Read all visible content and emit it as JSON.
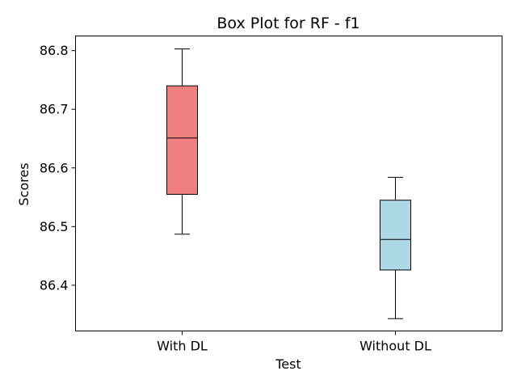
{
  "chart_data": {
    "type": "box",
    "title": "Box Plot for RF - f1",
    "xlabel": "Test",
    "ylabel": "Scores",
    "ylim": [
      86.322,
      86.825
    ],
    "yticks": [
      86.4,
      86.5,
      86.6,
      86.7,
      86.8
    ],
    "ytick_labels": [
      "86.4",
      "86.5",
      "86.6",
      "86.7",
      "86.8"
    ],
    "grid": false,
    "categories": [
      "With DL",
      "Without DL"
    ],
    "boxes": [
      {
        "category": "With DL",
        "whisker_low": 86.487,
        "q1": 86.555,
        "median": 86.651,
        "q3": 86.74,
        "whisker_high": 86.803,
        "color": "#f08080"
      },
      {
        "category": "Without DL",
        "whisker_low": 86.343,
        "q1": 86.426,
        "median": 86.478,
        "q3": 86.545,
        "whisker_high": 86.584,
        "color": "#add8e6"
      }
    ]
  }
}
